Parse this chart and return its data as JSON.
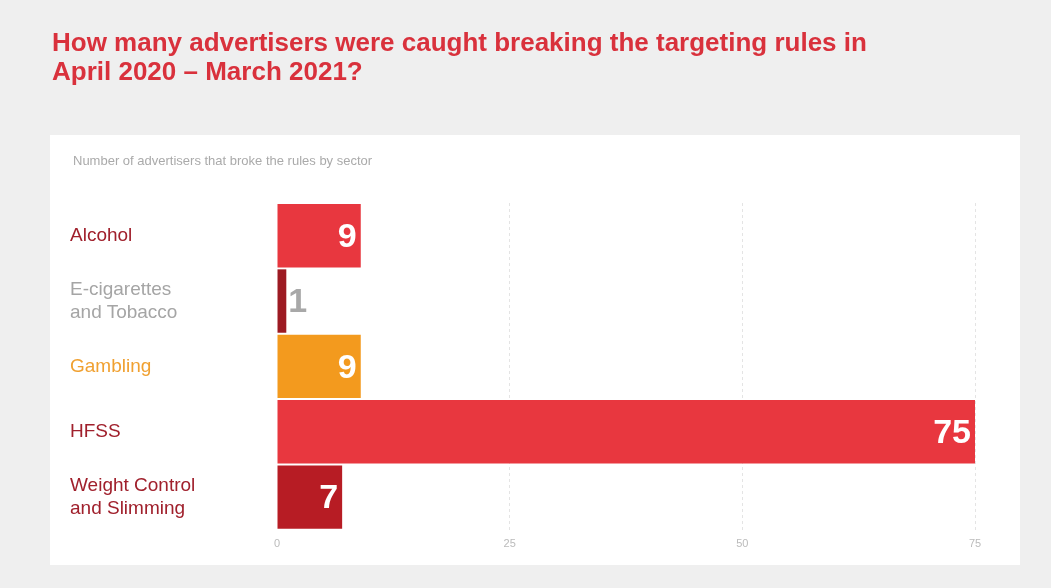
{
  "chart_data": {
    "type": "bar",
    "orientation": "horizontal",
    "title": "How many advertisers were caught breaking the targeting rules in April 2020 – March 2021?",
    "subtitle": "Number of advertisers that broke the rules by sector",
    "categories": [
      "Alcohol",
      "E-cigarettes and Tobacco",
      "Gambling",
      "HFSS",
      "Weight Control and Slimming"
    ],
    "values": [
      9,
      1,
      9,
      75,
      7
    ],
    "colors": [
      "#e8373f",
      "#9c1a22",
      "#f39a1e",
      "#e8373f",
      "#b71c24"
    ],
    "xlim": [
      0,
      75
    ],
    "xticks": [
      0,
      25,
      50,
      75
    ],
    "grid": "x",
    "data_labels": true,
    "legend": false
  }
}
